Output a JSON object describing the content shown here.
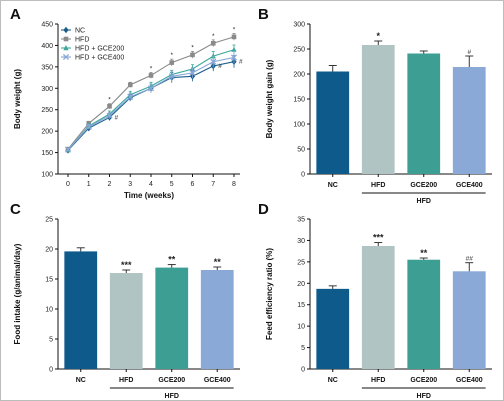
{
  "chart_data": [
    {
      "panel": "A",
      "type": "line",
      "xlabel": "Time (weeks)",
      "ylabel": "Body weight (g)",
      "x": [
        0,
        1,
        2,
        3,
        4,
        5,
        6,
        7,
        8
      ],
      "xlim": [
        0,
        8
      ],
      "ylim": [
        100,
        450
      ],
      "yticks": [
        100,
        150,
        200,
        250,
        300,
        350,
        400,
        450
      ],
      "legend_position": "top-left",
      "series": [
        {
          "name": "NC",
          "color": "#1b5e8c",
          "marker": "diamond",
          "values": [
            155,
            207,
            232,
            278,
            300,
            325,
            328,
            352,
            362
          ],
          "err": [
            3,
            6,
            7,
            8,
            10,
            12,
            12,
            12,
            14
          ],
          "sig": [
            "",
            "",
            "#",
            "",
            "",
            "",
            "",
            "#",
            "#"
          ]
        },
        {
          "name": "HFD",
          "color": "#8a8a8a",
          "marker": "square",
          "values": [
            158,
            218,
            258,
            308,
            330,
            360,
            378,
            405,
            420
          ],
          "err": [
            3,
            5,
            6,
            6,
            7,
            8,
            8,
            8,
            8
          ],
          "sig": [
            "",
            "",
            "*",
            "",
            "*",
            "*",
            "*",
            "*",
            "*"
          ]
        },
        {
          "name": "HFD + GCE200",
          "color": "#3aa89a",
          "marker": "triangle",
          "values": [
            156,
            212,
            240,
            285,
            305,
            332,
            345,
            375,
            390
          ],
          "err": [
            3,
            6,
            7,
            8,
            9,
            10,
            10,
            11,
            11
          ],
          "sig": [
            "",
            "",
            "",
            "",
            "",
            "",
            "",
            "",
            ""
          ]
        },
        {
          "name": "HFD + GCE400",
          "color": "#88a7d6",
          "marker": "cross",
          "values": [
            157,
            210,
            236,
            280,
            300,
            328,
            336,
            362,
            372
          ],
          "err": [
            3,
            6,
            7,
            9,
            10,
            12,
            12,
            13,
            14
          ],
          "sig": [
            "",
            "",
            "",
            "",
            "",
            "",
            "",
            "",
            ""
          ]
        }
      ]
    },
    {
      "panel": "B",
      "type": "bar",
      "ylabel": "Body weight gain (g)",
      "categories": [
        "NC",
        "HFD",
        "GCE200",
        "GCE400"
      ],
      "values": [
        205,
        258,
        241,
        214
      ],
      "errors": [
        12,
        8,
        5,
        22
      ],
      "colors": [
        "#0e5a8a",
        "#b0c4c4",
        "#3d9e94",
        "#8aa9d6"
      ],
      "sig": [
        "",
        "*",
        "",
        "#"
      ],
      "ylim": [
        0,
        300
      ],
      "yticks": [
        0,
        50,
        100,
        150,
        200,
        250,
        300
      ],
      "group_label": "HFD"
    },
    {
      "panel": "C",
      "type": "bar",
      "ylabel": "Food intake (g/animal/day)",
      "categories": [
        "NC",
        "HFD",
        "GCE200",
        "GCE400"
      ],
      "values": [
        19.6,
        16.0,
        16.9,
        16.5
      ],
      "errors": [
        0.6,
        0.5,
        0.5,
        0.5
      ],
      "colors": [
        "#0e5a8a",
        "#b0c4c4",
        "#3d9e94",
        "#8aa9d6"
      ],
      "sig": [
        "",
        "***",
        "**",
        "**"
      ],
      "ylim": [
        0,
        25
      ],
      "yticks": [
        0,
        5,
        10,
        15,
        20,
        25
      ],
      "group_label": "HFD"
    },
    {
      "panel": "D",
      "type": "bar",
      "ylabel": "Feed efficiency ratio (%)",
      "categories": [
        "NC",
        "HFD",
        "GCE200",
        "GCE400"
      ],
      "values": [
        18.7,
        28.7,
        25.5,
        22.8
      ],
      "errors": [
        0.7,
        0.8,
        0.4,
        2.0
      ],
      "colors": [
        "#0e5a8a",
        "#b0c4c4",
        "#3d9e94",
        "#8aa9d6"
      ],
      "sig": [
        "",
        "***",
        "**",
        "##"
      ],
      "ylim": [
        0,
        35
      ],
      "yticks": [
        0,
        5,
        10,
        15,
        20,
        25,
        30,
        35
      ],
      "group_label": "HFD"
    }
  ]
}
